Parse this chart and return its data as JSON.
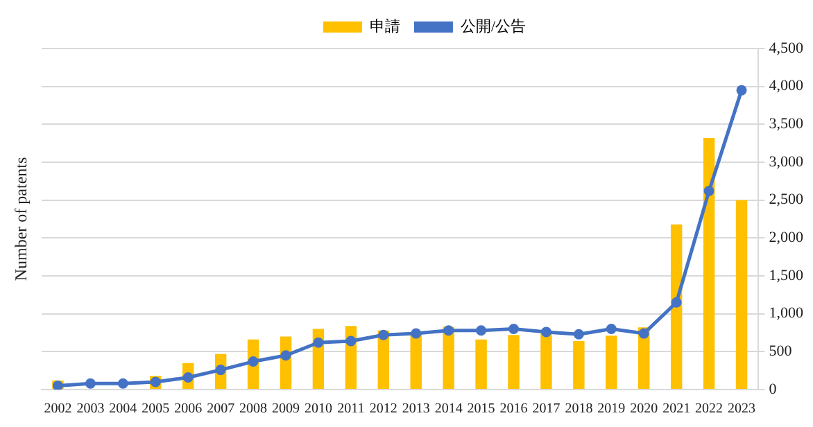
{
  "chart_data": {
    "type": "bar",
    "ylabel": "Number of patents",
    "categories": [
      "2002",
      "2003",
      "2004",
      "2005",
      "2006",
      "2007",
      "2008",
      "2009",
      "2010",
      "2011",
      "2012",
      "2013",
      "2014",
      "2015",
      "2016",
      "2017",
      "2018",
      "2019",
      "2020",
      "2021",
      "2022",
      "2023"
    ],
    "series": [
      {
        "name": "申請",
        "color": "#ffc000",
        "values": [
          120,
          null,
          null,
          180,
          350,
          470,
          660,
          700,
          800,
          840,
          780,
          730,
          830,
          660,
          720,
          740,
          640,
          710,
          820,
          2180,
          3320,
          2500
        ]
      },
      {
        "name": "公開/公告",
        "type": "line",
        "color": "#4472c4",
        "values": [
          50,
          80,
          80,
          100,
          160,
          260,
          370,
          450,
          620,
          640,
          720,
          740,
          780,
          780,
          800,
          760,
          730,
          800,
          740,
          1150,
          2620,
          3950
        ]
      }
    ],
    "ylim": [
      0,
      4500
    ],
    "yticks": [
      0,
      500,
      {
        "value": 1000,
        "label": "1,000"
      },
      {
        "value": 1500,
        "label": "1,500"
      },
      {
        "value": 2000,
        "label": "2,000"
      },
      {
        "value": 2500,
        "label": "2,500"
      },
      {
        "value": 3000,
        "label": "3,000"
      },
      {
        "value": 3500,
        "label": "3,500"
      },
      {
        "value": 4000,
        "label": "4,000"
      },
      {
        "value": 4500,
        "label": "4,500"
      }
    ],
    "grid": "y",
    "legend": "top",
    "marker": "circle"
  }
}
